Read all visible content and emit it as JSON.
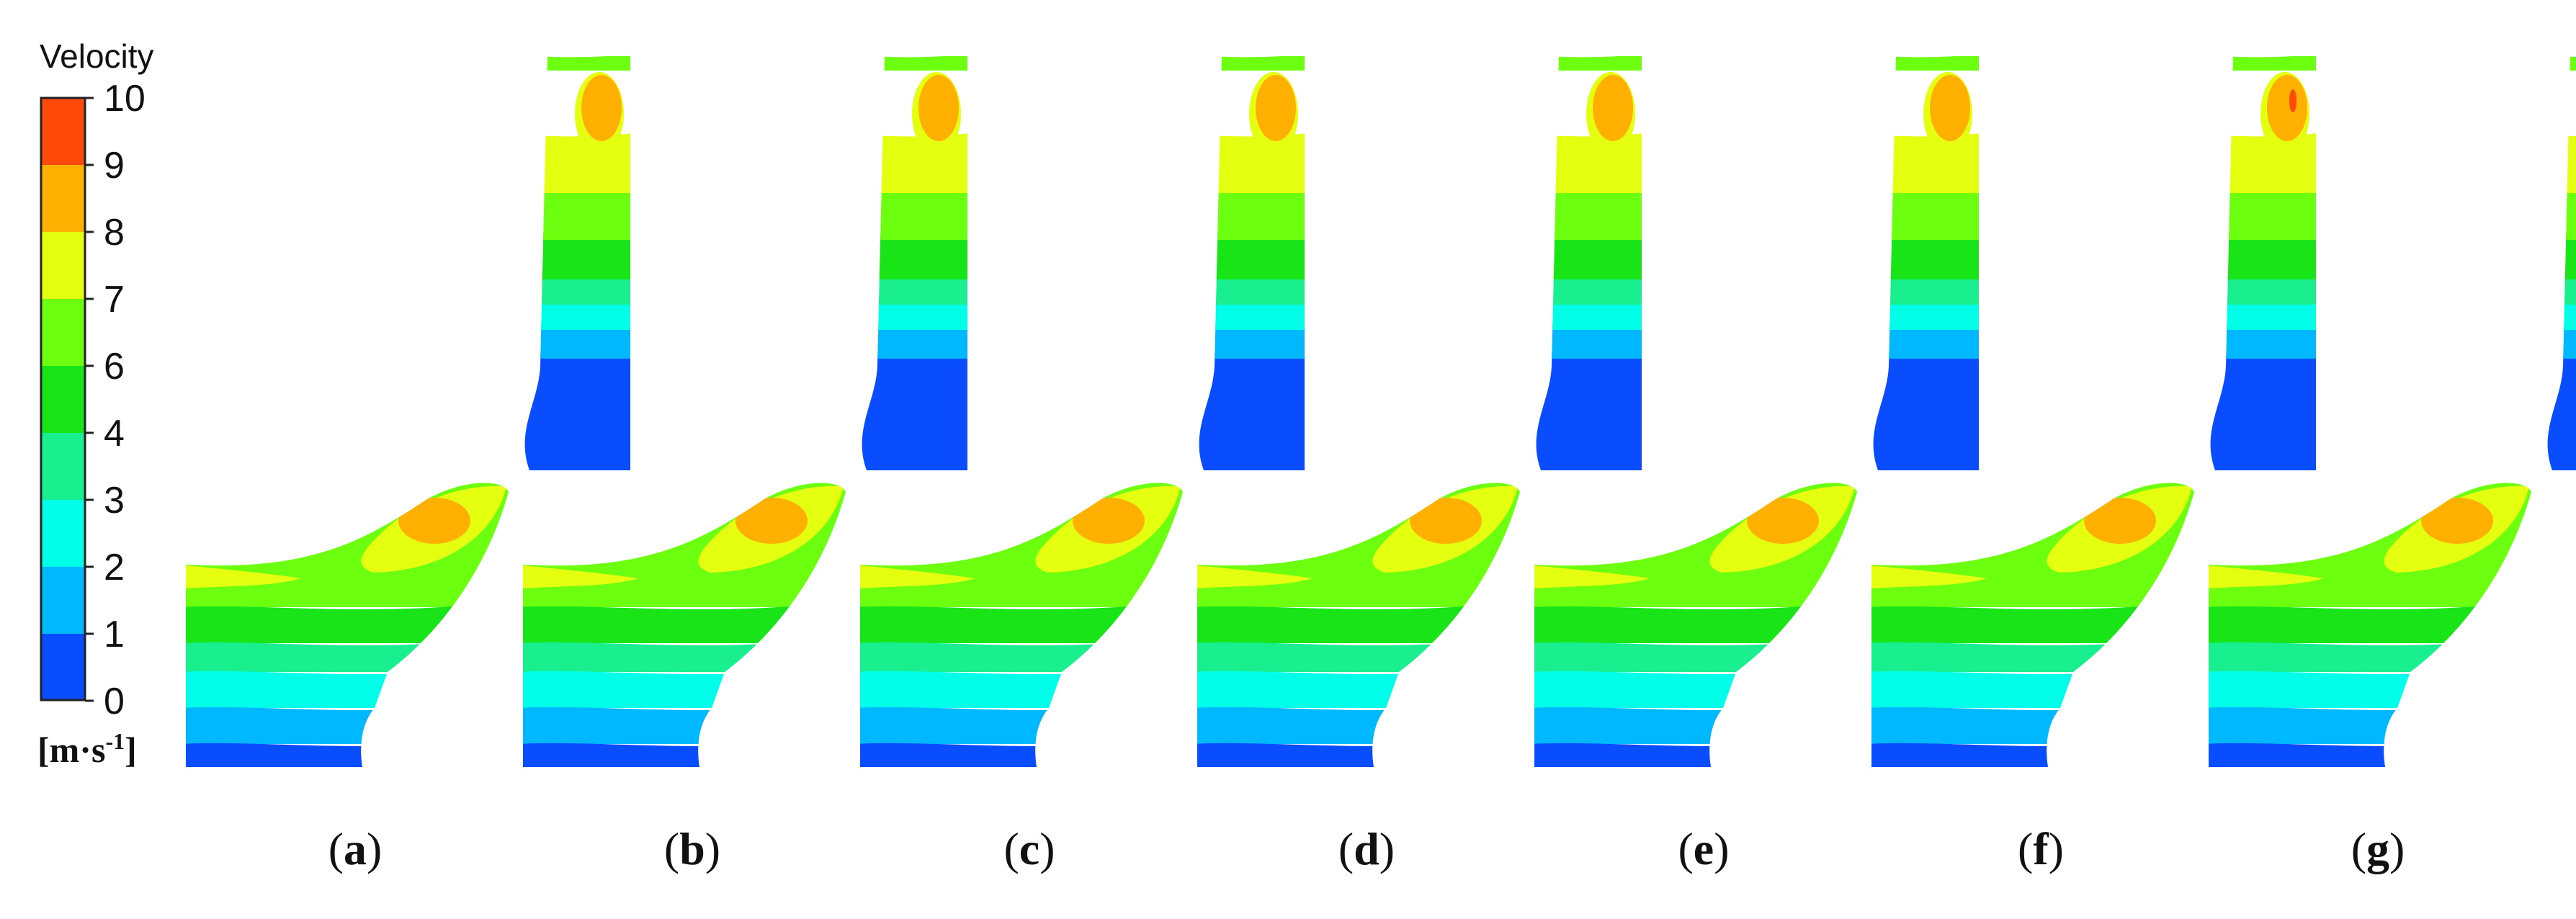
{
  "legend": {
    "title": "Velocity",
    "unit_main": "[m·s",
    "unit_sup": "-1",
    "unit_close": "]",
    "ticks": [
      "10",
      "9",
      "8",
      "7",
      "6",
      "4",
      "3",
      "2",
      "1",
      "0"
    ],
    "bands": [
      "#ff4a0a",
      "#ffb000",
      "#e4ff10",
      "#6cff10",
      "#18e418",
      "#19ef8e",
      "#00ffe8",
      "#00b8ff",
      "#0a4cff"
    ]
  },
  "panels": [
    {
      "open": "(",
      "letter": "a",
      "close": ")"
    },
    {
      "open": "(",
      "letter": "b",
      "close": ")"
    },
    {
      "open": "(",
      "letter": "c",
      "close": ")"
    },
    {
      "open": "(",
      "letter": "d",
      "close": ")"
    },
    {
      "open": "(",
      "letter": "e",
      "close": ")"
    },
    {
      "open": "(",
      "letter": "f",
      "close": ")"
    },
    {
      "open": "(",
      "letter": "g",
      "close": ")"
    }
  ]
}
